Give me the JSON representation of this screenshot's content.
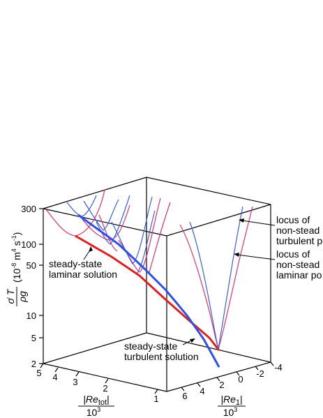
{
  "axes": {
    "z_ticks": [
      "300",
      "100",
      "50",
      "10",
      "5",
      "2"
    ],
    "z_unit": "(10",
    "z_unit_exp": "-8",
    "z_unit_tail": " m",
    "z_unit_exp2": "4",
    "z_unit_tail2": " s",
    "z_unit_exp3": "-1",
    "z_unit_close": ")",
    "left_ticks": [
      "5",
      "4",
      "3",
      "2",
      "1"
    ],
    "right_ticks": [
      "6",
      "4",
      "2",
      "0",
      "-2",
      "-4"
    ],
    "left_num_main": "|Re",
    "left_num_sub": "tot",
    "left_num_end": "|",
    "left_den_main": "10",
    "left_den_exp": "3",
    "right_num_main": "|Re",
    "right_num_sub": "1",
    "right_num_end": "|",
    "right_den_main": "10",
    "right_den_exp": "3",
    "z_sym_num": "σ̇ T",
    "z_sym_den": "ρg"
  },
  "annotations": {
    "laminar_line1": "steady-state",
    "laminar_line2": "laminar solution",
    "turbulent_line1": "steady-state",
    "turbulent_line2": "turbulent solution",
    "locus_turb_1": "locus of",
    "locus_turb_2": "non-stead",
    "locus_turb_3": "turbulent p",
    "locus_lam_1": "locus of",
    "locus_lam_2": "non-stead",
    "locus_lam_3": "laminar po"
  },
  "colors": {
    "laminar": "#e0306a",
    "turbulent": "#3a5de0",
    "steady_laminar": "#e02020",
    "steady_turbulent": "#2f4fe8"
  }
}
